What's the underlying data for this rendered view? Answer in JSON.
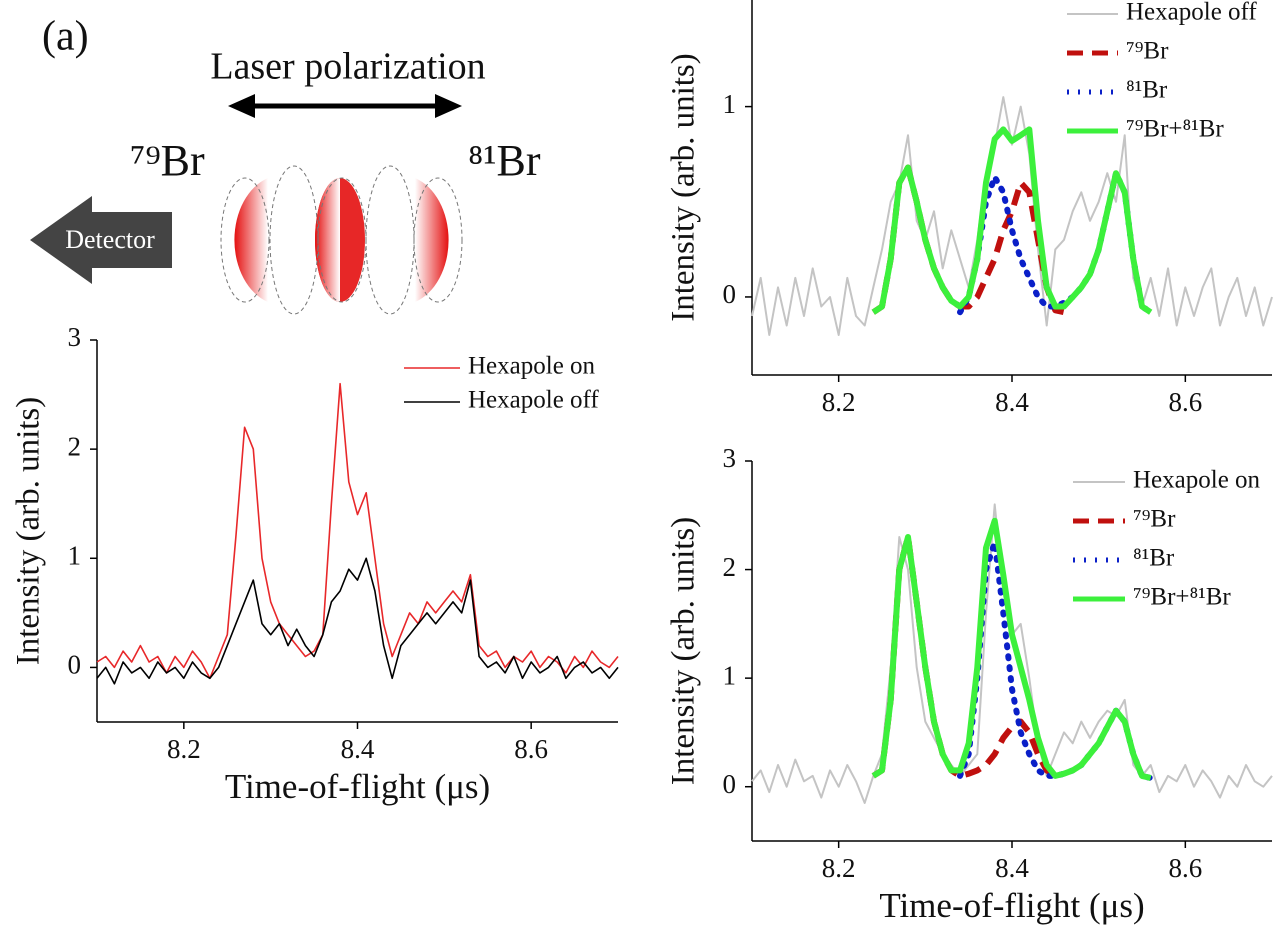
{
  "diagram": {
    "panel_label": "(a)",
    "title": "Laser polarization",
    "left_label": "⁷⁹Br",
    "right_label": "⁸¹Br",
    "detector": "Detector"
  },
  "chart_data": [
    {
      "type": "line",
      "y_label": "Intensity (arb. units)",
      "x_label": "Time-of-flight (μs)",
      "xlim": [
        8.1,
        8.7
      ],
      "xticks": [
        8.2,
        8.4,
        8.6
      ],
      "ylim": [
        -0.5,
        3
      ],
      "yticks": [
        0,
        1,
        2,
        3
      ],
      "legend": "upper right",
      "x": [
        8.1,
        8.11,
        8.12,
        8.13,
        8.14,
        8.15,
        8.16,
        8.17,
        8.18,
        8.19,
        8.2,
        8.21,
        8.22,
        8.23,
        8.24,
        8.25,
        8.26,
        8.27,
        8.28,
        8.29,
        8.3,
        8.31,
        8.32,
        8.33,
        8.34,
        8.35,
        8.36,
        8.37,
        8.38,
        8.39,
        8.4,
        8.41,
        8.42,
        8.43,
        8.44,
        8.45,
        8.46,
        8.47,
        8.48,
        8.49,
        8.5,
        8.51,
        8.52,
        8.53,
        8.54,
        8.55,
        8.56,
        8.57,
        8.58,
        8.59,
        8.6,
        8.61,
        8.62,
        8.63,
        8.64,
        8.65,
        8.66,
        8.67,
        8.68,
        8.69,
        8.7
      ],
      "series": [
        {
          "name": "Hexapole on",
          "color": "#e8282a",
          "style": "solid",
          "values": [
            0.05,
            0.1,
            0.0,
            0.15,
            0.05,
            0.2,
            0.05,
            0.1,
            -0.05,
            0.1,
            0.0,
            0.15,
            0.05,
            -0.1,
            0.1,
            0.3,
            1.2,
            2.2,
            2.0,
            1.0,
            0.6,
            0.4,
            0.3,
            0.2,
            0.1,
            0.15,
            0.3,
            1.5,
            2.6,
            1.7,
            1.4,
            1.6,
            1.0,
            0.4,
            0.1,
            0.3,
            0.5,
            0.4,
            0.6,
            0.5,
            0.6,
            0.7,
            0.6,
            0.85,
            0.2,
            0.1,
            0.15,
            0.0,
            0.1,
            0.05,
            0.15,
            0.0,
            0.1,
            0.05,
            -0.05,
            0.1,
            0.0,
            0.15,
            0.05,
            0.0,
            0.1
          ]
        },
        {
          "name": "Hexapole off",
          "color": "#000000",
          "style": "solid",
          "values": [
            -0.1,
            0.0,
            -0.15,
            0.05,
            -0.05,
            0.0,
            -0.1,
            0.05,
            -0.05,
            0.0,
            -0.1,
            0.05,
            -0.05,
            -0.1,
            0.0,
            0.2,
            0.4,
            0.6,
            0.8,
            0.4,
            0.3,
            0.4,
            0.2,
            0.35,
            0.2,
            0.1,
            0.3,
            0.6,
            0.7,
            0.9,
            0.8,
            1.0,
            0.7,
            0.2,
            -0.1,
            0.2,
            0.3,
            0.4,
            0.5,
            0.4,
            0.5,
            0.6,
            0.5,
            0.8,
            0.1,
            0.0,
            0.05,
            -0.05,
            0.1,
            -0.1,
            0.05,
            -0.05,
            0.0,
            0.1,
            -0.1,
            0.0,
            0.05,
            -0.05,
            0.0,
            -0.1,
            0.0
          ]
        }
      ]
    },
    {
      "type": "line",
      "y_label": "Intensity (arb. units)",
      "xlim": [
        8.1,
        8.7
      ],
      "xticks": [
        8.2,
        8.4,
        8.6
      ],
      "ylim": [
        -0.41,
        1.56
      ],
      "yticks": [
        0,
        1
      ],
      "legend": "upper right",
      "x": [
        8.1,
        8.11,
        8.12,
        8.13,
        8.14,
        8.15,
        8.16,
        8.17,
        8.18,
        8.19,
        8.2,
        8.21,
        8.22,
        8.23,
        8.24,
        8.25,
        8.26,
        8.27,
        8.28,
        8.29,
        8.3,
        8.31,
        8.32,
        8.33,
        8.34,
        8.35,
        8.36,
        8.37,
        8.38,
        8.39,
        8.4,
        8.41,
        8.42,
        8.43,
        8.44,
        8.45,
        8.46,
        8.47,
        8.48,
        8.49,
        8.5,
        8.51,
        8.52,
        8.53,
        8.54,
        8.55,
        8.56,
        8.57,
        8.58,
        8.59,
        8.6,
        8.61,
        8.62,
        8.63,
        8.64,
        8.65,
        8.66,
        8.67,
        8.68,
        8.69,
        8.7
      ],
      "series": [
        {
          "name": "Hexapole off",
          "color": "#c4c4c4",
          "style": "solid",
          "values": [
            -0.1,
            0.1,
            -0.2,
            0.05,
            -0.15,
            0.1,
            -0.1,
            0.15,
            -0.05,
            0.0,
            -0.2,
            0.1,
            -0.1,
            -0.15,
            0.05,
            0.25,
            0.5,
            0.6,
            0.85,
            0.4,
            0.3,
            0.45,
            0.15,
            0.35,
            0.2,
            0.05,
            0.3,
            0.65,
            0.8,
            1.05,
            0.8,
            1.0,
            0.75,
            0.25,
            -0.15,
            0.25,
            0.3,
            0.45,
            0.55,
            0.4,
            0.5,
            0.65,
            0.5,
            0.85,
            0.1,
            -0.05,
            0.1,
            -0.1,
            0.15,
            -0.15,
            0.05,
            -0.1,
            0.05,
            0.15,
            -0.15,
            0.0,
            0.1,
            -0.1,
            0.05,
            -0.15,
            0.0
          ]
        },
        {
          "name": "⁷⁹Br",
          "color": "#c0100e",
          "style": "dashed",
          "values": [
            null,
            null,
            null,
            null,
            null,
            null,
            null,
            null,
            null,
            null,
            null,
            null,
            null,
            null,
            -0.08,
            -0.05,
            0.2,
            0.6,
            0.68,
            0.5,
            0.3,
            0.15,
            0.05,
            -0.02,
            -0.05,
            -0.05,
            0.0,
            0.1,
            0.2,
            0.35,
            0.45,
            0.6,
            0.55,
            0.3,
            0.05,
            -0.07,
            -0.08,
            null,
            null,
            null,
            null,
            null,
            null,
            null,
            null,
            null,
            null,
            null,
            null,
            null,
            null,
            null,
            null,
            null,
            null,
            null,
            null,
            null,
            null,
            null,
            null
          ]
        },
        {
          "name": "⁸¹Br",
          "color": "#0a1fc8",
          "style": "dotted",
          "values": [
            null,
            null,
            null,
            null,
            null,
            null,
            null,
            null,
            null,
            null,
            null,
            null,
            null,
            null,
            null,
            null,
            null,
            null,
            null,
            null,
            null,
            null,
            null,
            null,
            -0.08,
            0.0,
            0.2,
            0.5,
            0.63,
            0.55,
            0.35,
            0.2,
            0.1,
            0.0,
            -0.05,
            -0.05,
            -0.03,
            0.0,
            0.05,
            0.12,
            0.25,
            0.45,
            0.65,
            0.55,
            0.2,
            -0.05,
            -0.08,
            null,
            null,
            null,
            null,
            null,
            null,
            null,
            null,
            null,
            null,
            null,
            null,
            null,
            null
          ]
        },
        {
          "name": "⁷⁹Br+⁸¹Br",
          "color": "#3cf03c",
          "style": "solid",
          "values": [
            null,
            null,
            null,
            null,
            null,
            null,
            null,
            null,
            null,
            null,
            null,
            null,
            null,
            null,
            -0.08,
            -0.05,
            0.2,
            0.6,
            0.68,
            0.5,
            0.3,
            0.15,
            0.05,
            -0.02,
            -0.05,
            0.0,
            0.2,
            0.6,
            0.83,
            0.88,
            0.82,
            0.85,
            0.88,
            0.4,
            0.05,
            -0.05,
            -0.05,
            0.0,
            0.05,
            0.12,
            0.25,
            0.45,
            0.65,
            0.55,
            0.2,
            -0.05,
            -0.08,
            null,
            null,
            null,
            null,
            null,
            null,
            null,
            null,
            null,
            null,
            null,
            null,
            null,
            null
          ]
        }
      ]
    },
    {
      "type": "line",
      "y_label": "Intensity (arb. units)",
      "x_label": "Time-of-flight (μs)",
      "xlim": [
        8.1,
        8.7
      ],
      "xticks": [
        8.2,
        8.4,
        8.6
      ],
      "ylim": [
        -0.5,
        3
      ],
      "yticks": [
        0,
        1,
        2,
        3
      ],
      "legend": "upper right",
      "x": [
        8.1,
        8.11,
        8.12,
        8.13,
        8.14,
        8.15,
        8.16,
        8.17,
        8.18,
        8.19,
        8.2,
        8.21,
        8.22,
        8.23,
        8.24,
        8.25,
        8.26,
        8.27,
        8.28,
        8.29,
        8.3,
        8.31,
        8.32,
        8.33,
        8.34,
        8.35,
        8.36,
        8.37,
        8.38,
        8.39,
        8.4,
        8.41,
        8.42,
        8.43,
        8.44,
        8.45,
        8.46,
        8.47,
        8.48,
        8.49,
        8.5,
        8.51,
        8.52,
        8.53,
        8.54,
        8.55,
        8.56,
        8.57,
        8.58,
        8.59,
        8.6,
        8.61,
        8.62,
        8.63,
        8.64,
        8.65,
        8.66,
        8.67,
        8.68,
        8.69,
        8.7
      ],
      "series": [
        {
          "name": "Hexapole on",
          "color": "#c4c4c4",
          "style": "solid",
          "values": [
            0.05,
            0.15,
            -0.05,
            0.2,
            0.0,
            0.25,
            0.05,
            0.1,
            -0.1,
            0.15,
            0.0,
            0.2,
            0.05,
            -0.15,
            0.1,
            0.3,
            1.1,
            2.3,
            2.0,
            1.1,
            0.6,
            0.45,
            0.3,
            0.2,
            0.1,
            0.2,
            0.3,
            1.6,
            2.6,
            1.8,
            1.4,
            1.5,
            1.0,
            0.4,
            0.1,
            0.3,
            0.5,
            0.4,
            0.6,
            0.45,
            0.6,
            0.7,
            0.65,
            0.8,
            0.2,
            0.1,
            0.2,
            -0.05,
            0.1,
            0.05,
            0.2,
            0.0,
            0.15,
            0.05,
            -0.1,
            0.1,
            0.0,
            0.2,
            0.05,
            0.0,
            0.1
          ]
        },
        {
          "name": "⁷⁹Br",
          "color": "#c0100e",
          "style": "dashed",
          "values": [
            null,
            null,
            null,
            null,
            null,
            null,
            null,
            null,
            null,
            null,
            null,
            null,
            null,
            null,
            0.1,
            0.15,
            0.8,
            2.0,
            2.3,
            1.7,
            1.1,
            0.6,
            0.3,
            0.15,
            0.1,
            0.12,
            0.15,
            0.2,
            0.3,
            0.45,
            0.55,
            0.6,
            0.5,
            0.3,
            0.15,
            0.1,
            null,
            null,
            null,
            null,
            null,
            null,
            null,
            null,
            null,
            null,
            null,
            null,
            null,
            null,
            null,
            null,
            null,
            null,
            null,
            null,
            null,
            null,
            null,
            null,
            null
          ]
        },
        {
          "name": "⁸¹Br",
          "color": "#0a1fc8",
          "style": "dotted",
          "values": [
            null,
            null,
            null,
            null,
            null,
            null,
            null,
            null,
            null,
            null,
            null,
            null,
            null,
            null,
            null,
            null,
            null,
            null,
            null,
            null,
            null,
            null,
            null,
            null,
            0.1,
            0.3,
            1.0,
            2.0,
            2.25,
            1.6,
            0.9,
            0.5,
            0.3,
            0.15,
            0.1,
            0.1,
            0.12,
            0.15,
            0.2,
            0.3,
            0.4,
            0.55,
            0.7,
            0.6,
            0.3,
            0.1,
            0.08,
            null,
            null,
            null,
            null,
            null,
            null,
            null,
            null,
            null,
            null,
            null,
            null,
            null,
            null
          ]
        },
        {
          "name": "⁷⁹Br+⁸¹Br",
          "color": "#3cf03c",
          "style": "solid",
          "values": [
            null,
            null,
            null,
            null,
            null,
            null,
            null,
            null,
            null,
            null,
            null,
            null,
            null,
            null,
            0.1,
            0.15,
            0.8,
            2.0,
            2.3,
            1.7,
            1.1,
            0.6,
            0.3,
            0.15,
            0.15,
            0.4,
            1.1,
            2.2,
            2.45,
            1.95,
            1.4,
            1.1,
            0.8,
            0.45,
            0.2,
            0.1,
            0.12,
            0.15,
            0.2,
            0.3,
            0.4,
            0.55,
            0.7,
            0.6,
            0.3,
            0.1,
            0.08,
            null,
            null,
            null,
            null,
            null,
            null,
            null,
            null,
            null,
            null,
            null,
            null,
            null,
            null
          ]
        }
      ]
    }
  ]
}
